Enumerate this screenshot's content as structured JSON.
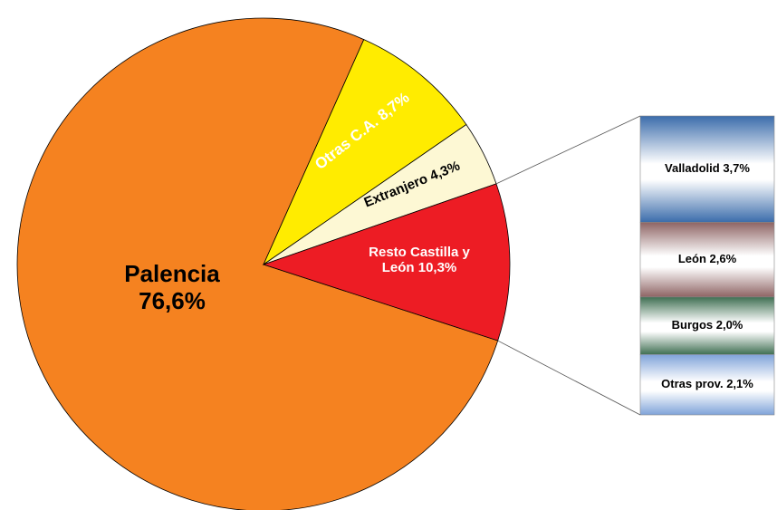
{
  "chart_data": {
    "type": "pie",
    "categories": [
      "Palencia",
      "Otras C.A.",
      "Extranjero",
      "Resto Castilla y León"
    ],
    "values": [
      76.6,
      8.7,
      4.3,
      10.3
    ],
    "value_labels": [
      "76,6%",
      "8,7%",
      "4,3%",
      "10,3%"
    ],
    "colors": [
      "#f58220",
      "#ffec00",
      "#fdf8d4",
      "#ed1c24"
    ],
    "breakdown": {
      "categories": [
        "Valladolid",
        "León",
        "Burgos",
        "Otras prov."
      ],
      "values": [
        3.7,
        2.6,
        2.0,
        2.1
      ],
      "value_labels": [
        "3,7%",
        "2,6%",
        "2,0%",
        "2,1%"
      ],
      "colors": [
        "#3b6cab",
        "#8e6464",
        "#3f6f52",
        "#7fa3d9"
      ]
    }
  }
}
